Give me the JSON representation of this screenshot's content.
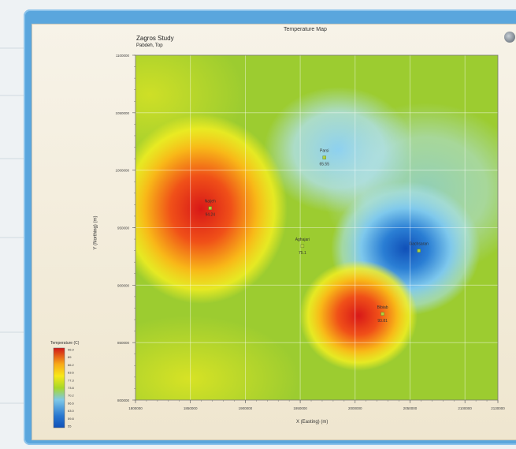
{
  "window": {
    "title": "Temperature Map",
    "study": "Zagros Study",
    "subtitle": "Pabdeh, Top"
  },
  "chart_data": {
    "type": "heatmap",
    "title": "Temperature Map",
    "xlabel": "X (Easting) (m)",
    "ylabel": "Y (Northing) (m)",
    "xlim": [
      1800000,
      2130000
    ],
    "ylim": [
      800000,
      1100000
    ],
    "x_ticks": [
      "1800000",
      "1850000",
      "1900000",
      "1950000",
      "2000000",
      "2050000",
      "2100000",
      "2130000"
    ],
    "y_ticks": [
      "1100000",
      "1050000",
      "1000000",
      "950000",
      "900000",
      "850000",
      "800000"
    ],
    "grid": true,
    "wells": [
      {
        "name": "Naijeh",
        "value": "94.24",
        "x": 1868000,
        "y": 967000
      },
      {
        "name": "Parsi",
        "value": "65.55",
        "x": 1972000,
        "y": 1011000
      },
      {
        "name": "Aghajari",
        "value": "75.1",
        "x": 1952000,
        "y": 934000
      },
      {
        "name": "Gachsaran",
        "value": "",
        "x": 2058000,
        "y": 930000
      },
      {
        "name": "Bibiab",
        "value": "93.81",
        "x": 2025000,
        "y": 875000
      }
    ],
    "legend": {
      "title": "Temperature (C)",
      "labels": [
        "96.9",
        "89",
        "86.2",
        "83.6",
        "77.3",
        "73.8",
        "70.2",
        "66.6",
        "63.0",
        "59.8",
        "55"
      ],
      "colors": [
        "#d01818",
        "#f04818",
        "#f8a818",
        "#f8e818",
        "#e0e818",
        "#a8d828",
        "#78c838",
        "#7ec8e8",
        "#58a8e0",
        "#2878d0",
        "#1050b8"
      ]
    }
  }
}
